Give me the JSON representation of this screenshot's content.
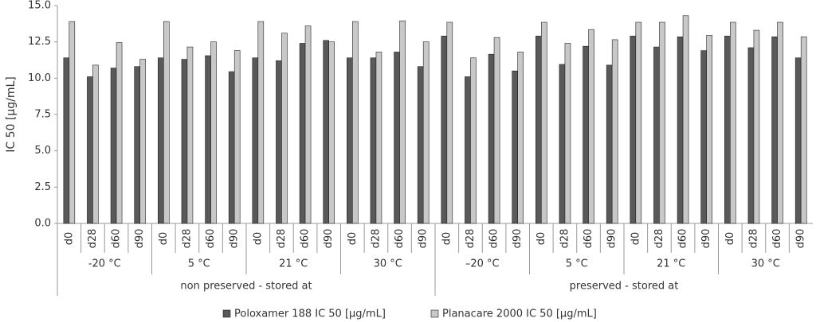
{
  "chart_data": {
    "type": "bar",
    "y_label": "IC 50 [µg/mL]",
    "categories": [
      "d0",
      "d28",
      "d60",
      "d90",
      "d0",
      "d28",
      "d60",
      "d90",
      "d0",
      "d28",
      "d60",
      "d90",
      "d0",
      "d28",
      "d60",
      "d90",
      "d0",
      "d28",
      "d60",
      "d90",
      "d0",
      "d28",
      "d60",
      "d90",
      "d0",
      "d28",
      "d60",
      "d90",
      "d0",
      "d28",
      "d60",
      "d90"
    ],
    "category_level2": [
      "-20 °C",
      "5 °C",
      "21 °C",
      "30 °C",
      "–20 °C",
      "5 °C",
      "21 °C",
      "30 °C"
    ],
    "category_level3": [
      "non preserved - stored at",
      "preserved - stored at"
    ],
    "series": [
      {
        "name": "Poloxamer 188 IC 50 [µg/mL]",
        "color": "#595959",
        "values": [
          11.4,
          10.1,
          10.7,
          10.8,
          11.4,
          11.3,
          11.55,
          10.45,
          11.4,
          11.2,
          12.4,
          12.6,
          11.4,
          11.4,
          11.8,
          10.8,
          12.9,
          10.1,
          11.65,
          10.5,
          12.9,
          10.95,
          12.2,
          10.9,
          12.9,
          12.15,
          12.85,
          11.9,
          12.9,
          12.1,
          12.85,
          11.4
        ]
      },
      {
        "name": "Planacare 2000 IC 50 [µg/mL]",
        "color": "#c8c8c8",
        "values": [
          13.9,
          10.9,
          12.45,
          11.3,
          13.9,
          12.15,
          12.5,
          11.9,
          13.9,
          13.1,
          13.6,
          12.5,
          13.9,
          11.8,
          13.95,
          12.5,
          13.85,
          11.4,
          12.8,
          11.8,
          13.85,
          12.4,
          13.35,
          12.65,
          13.85,
          13.85,
          14.3,
          12.95,
          13.85,
          13.3,
          13.85,
          12.85
        ]
      }
    ],
    "ylim": [
      0,
      15
    ],
    "yticks": [
      {
        "value": 0,
        "label": "0.0"
      },
      2.5,
      {
        "value": 5,
        "label": "5.0"
      },
      7.5,
      {
        "value": 10,
        "label": "10.0"
      },
      12.5,
      {
        "value": 15,
        "label": "15.0"
      }
    ],
    "grid": false,
    "legend": "bottom"
  }
}
